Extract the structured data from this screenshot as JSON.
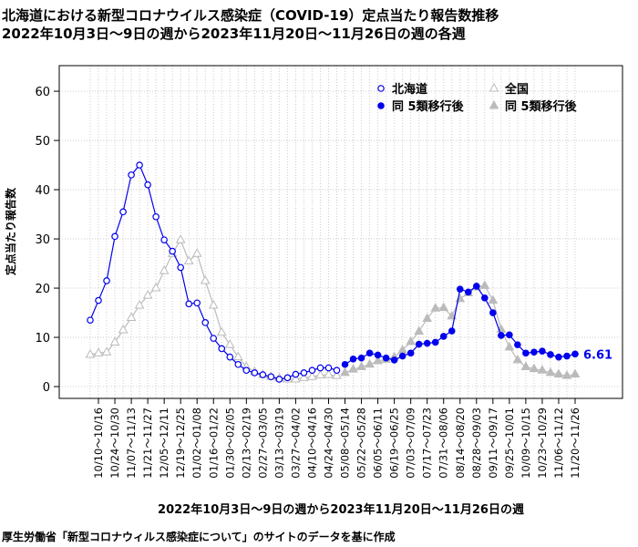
{
  "chart_data": {
    "type": "line",
    "title": "北海道における新型コロナウイルス感染症（COVID-19）定点当たり報告数推移",
    "subtitle": "2022年10月3日～9日の週から2023年11月20日～11月26日の週の各週",
    "x_label": "2022年10月3日～9日の週から2023年11月20日～11月26日の週",
    "y_label": "定点当たり報告数",
    "caption": "厚生労働省「新型コロナウィルス感染症について」のサイトのデータを基に作成",
    "categories": [
      null,
      "10/10～10/16",
      null,
      "10/24～10/30",
      null,
      "11/07～11/13",
      null,
      "11/21～11/27",
      null,
      "12/05～12/11",
      null,
      "12/19～12/25",
      null,
      "01/02～01/08",
      null,
      "01/16～01/22",
      null,
      "01/30～02/05",
      null,
      "02/13～02/19",
      null,
      "02/27～03/05",
      null,
      "03/13～03/19",
      null,
      "03/27～04/02",
      null,
      "04/10～04/16",
      null,
      "04/24～04/30",
      null,
      "05/08～05/14",
      null,
      "05/22～05/28",
      null,
      "06/05～06/11",
      null,
      "06/19～06/25",
      null,
      "07/03～07/09",
      null,
      "07/17～07/23",
      null,
      "07/31～08/06",
      null,
      "08/14～08/20",
      null,
      "08/28～09/03",
      null,
      "09/11～09/17",
      null,
      "09/25～10/01",
      null,
      "10/09～10/15",
      null,
      "10/23～10/29",
      null,
      "11/06～11/12",
      null,
      "11/20～11/26"
    ],
    "series": [
      {
        "name": "北海道",
        "color": "#0000ee",
        "marker": "circle",
        "filled": false,
        "values": [
          13.5,
          17.5,
          21.5,
          30.5,
          35.5,
          43,
          45,
          41,
          34.5,
          29.8,
          27.5,
          24.2,
          16.8,
          17,
          13,
          9.8,
          7.7,
          6,
          4.5,
          3.3,
          2.8,
          2.4,
          2,
          1.5,
          1.8,
          2.5,
          2.8,
          3.3,
          3.8,
          3.8,
          3.3,
          null,
          null,
          null,
          null,
          null,
          null,
          null,
          null,
          null,
          null,
          null,
          null,
          null,
          null,
          null,
          null,
          null,
          null,
          null,
          null,
          null,
          null,
          null,
          null,
          null,
          null,
          null,
          null,
          null
        ]
      },
      {
        "name": "同 5類移行後",
        "color": "#0000ee",
        "marker": "circle",
        "filled": true,
        "values": [
          null,
          null,
          null,
          null,
          null,
          null,
          null,
          null,
          null,
          null,
          null,
          null,
          null,
          null,
          null,
          null,
          null,
          null,
          null,
          null,
          null,
          null,
          null,
          null,
          null,
          null,
          null,
          null,
          null,
          null,
          null,
          4.5,
          5.6,
          5.8,
          6.8,
          6.4,
          5.8,
          5.4,
          6.2,
          6.8,
          8.6,
          8.8,
          9.0,
          10.2,
          11.3,
          19.8,
          19.2,
          20.4,
          18,
          15,
          10.4,
          10.5,
          8.5,
          6.8,
          7.0,
          7.2,
          6.5,
          6.0,
          6.2,
          6.61
        ]
      },
      {
        "name": "全国",
        "color": "#bbbbbb",
        "marker": "triangle",
        "filled": false,
        "values": [
          6.5,
          6.8,
          7,
          9,
          11.5,
          14,
          16.5,
          18.5,
          20,
          23.5,
          27,
          29.8,
          25.5,
          27,
          21.5,
          16.5,
          11,
          8.5,
          6,
          4,
          3,
          2.4,
          2,
          1.7,
          1.5,
          1.5,
          1.8,
          2,
          2.3,
          2.4,
          2.2,
          null,
          null,
          null,
          null,
          null,
          null,
          null,
          null,
          null,
          null,
          null,
          null,
          null,
          null,
          null,
          null,
          null,
          null,
          null,
          null,
          null,
          null,
          null,
          null,
          null,
          null,
          null,
          null,
          null
        ]
      },
      {
        "name": "同 5類移行後",
        "color": "#bbbbbb",
        "marker": "triangle",
        "filled": true,
        "values": [
          null,
          null,
          null,
          null,
          null,
          null,
          null,
          null,
          null,
          null,
          null,
          null,
          null,
          null,
          null,
          null,
          null,
          null,
          null,
          null,
          null,
          null,
          null,
          null,
          null,
          null,
          null,
          null,
          null,
          null,
          null,
          2.8,
          3.5,
          4,
          4.5,
          5.2,
          5.5,
          6,
          7.4,
          9.1,
          11.2,
          13.8,
          15.9,
          16,
          14.3,
          17.8,
          19,
          20.2,
          20.5,
          17.5,
          11.6,
          8,
          5.4,
          4.0,
          3.6,
          3.3,
          2.8,
          2.5,
          2.2,
          2.5
        ]
      }
    ],
    "end_label_series": 1,
    "ylim": [
      -2.4,
      65.2
    ],
    "yticks": [
      0,
      10,
      20,
      30,
      40,
      50,
      60
    ],
    "grid": true,
    "legend": "top right"
  }
}
